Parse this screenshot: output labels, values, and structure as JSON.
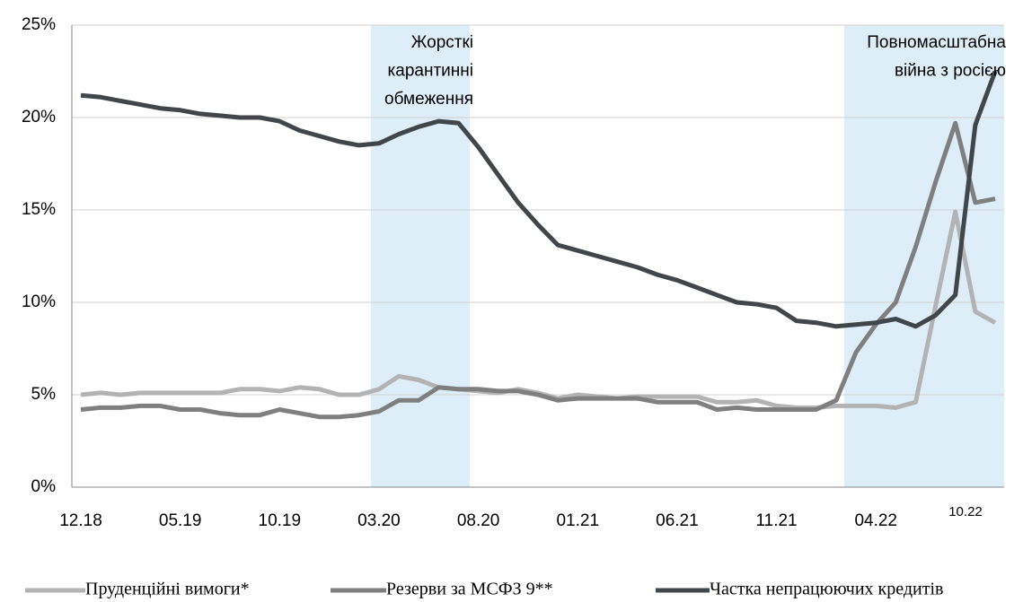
{
  "chart_data": {
    "type": "line",
    "categories": [
      "12.18",
      null,
      null,
      null,
      null,
      "05.19",
      null,
      null,
      null,
      null,
      "10.19",
      null,
      null,
      null,
      null,
      "03.20",
      null,
      null,
      null,
      null,
      "08.20",
      null,
      null,
      null,
      null,
      "01.21",
      null,
      null,
      null,
      null,
      "06.21",
      null,
      null,
      null,
      null,
      "11.21",
      null,
      null,
      null,
      null,
      "04.22",
      null,
      null,
      null,
      null,
      null,
      "10.22"
    ],
    "series": [
      {
        "name": "Пруденційні вимоги*",
        "color": "#b3b3b3",
        "values": [
          5.0,
          5.1,
          5.0,
          5.1,
          5.1,
          5.1,
          5.1,
          5.1,
          5.3,
          5.3,
          5.2,
          5.4,
          5.3,
          5.0,
          5.0,
          5.3,
          6.0,
          5.8,
          5.4,
          5.3,
          5.2,
          5.1,
          5.3,
          5.1,
          4.8,
          5.0,
          4.9,
          4.8,
          4.9,
          4.9,
          4.9,
          4.9,
          4.6,
          4.6,
          4.7,
          4.4,
          4.3,
          4.3,
          4.4,
          4.4,
          4.4,
          4.3,
          4.6,
          9.8,
          14.9,
          9.5,
          8.9
        ]
      },
      {
        "name": "Резерви за МСФЗ 9**",
        "color": "#7f7f7f",
        "values": [
          4.2,
          4.3,
          4.3,
          4.4,
          4.4,
          4.2,
          4.2,
          4.0,
          3.9,
          3.9,
          4.2,
          4.0,
          3.8,
          3.8,
          3.9,
          4.1,
          4.7,
          4.7,
          5.4,
          5.3,
          5.3,
          5.2,
          5.2,
          5.0,
          4.7,
          4.8,
          4.8,
          4.8,
          4.8,
          4.6,
          4.6,
          4.6,
          4.2,
          4.3,
          4.2,
          4.2,
          4.2,
          4.2,
          4.7,
          7.3,
          8.8,
          10.0,
          13.0,
          16.5,
          19.7,
          15.4,
          15.6
        ]
      },
      {
        "name": "Частка непрацюючих кредитів",
        "color": "#41464a",
        "values": [
          21.2,
          21.1,
          20.9,
          20.7,
          20.5,
          20.4,
          20.2,
          20.1,
          20.0,
          20.0,
          19.8,
          19.3,
          19.0,
          18.7,
          18.5,
          18.6,
          19.1,
          19.5,
          19.8,
          19.7,
          18.4,
          16.9,
          15.4,
          14.2,
          13.1,
          12.8,
          12.5,
          12.2,
          11.9,
          11.5,
          11.2,
          10.8,
          10.4,
          10.0,
          9.9,
          9.7,
          9.0,
          8.9,
          8.7,
          8.8,
          8.9,
          9.1,
          8.7,
          9.3,
          10.4,
          19.6,
          22.5
        ]
      }
    ],
    "annotations": [
      {
        "lines": [
          "Жорсткі",
          "карантинні",
          "обмеження"
        ]
      },
      {
        "lines": [
          "Повномасштабна",
          "війна з росією"
        ]
      }
    ],
    "ylim": [
      0,
      25
    ],
    "yticks": [
      {
        "value": 0,
        "label": "0%"
      },
      {
        "value": 5,
        "label": "5%"
      },
      {
        "value": 10,
        "label": "10%"
      },
      {
        "value": 15,
        "label": "15%"
      },
      {
        "value": 20,
        "label": "20%"
      },
      {
        "value": 25,
        "label": "25%"
      }
    ],
    "grid": true,
    "legend": "bottom"
  }
}
